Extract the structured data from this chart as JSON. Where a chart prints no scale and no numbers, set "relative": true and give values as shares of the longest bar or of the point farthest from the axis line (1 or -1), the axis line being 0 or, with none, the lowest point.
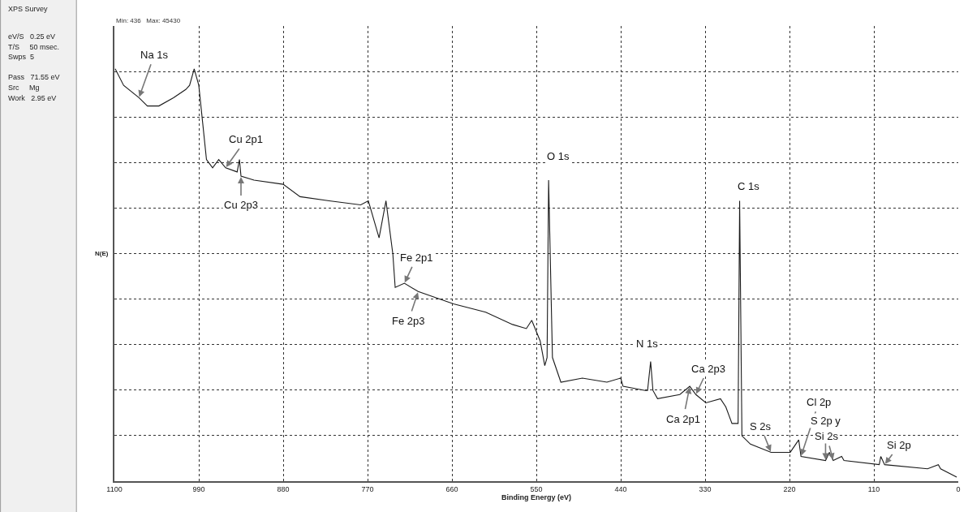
{
  "chart_data": {
    "type": "line",
    "xlabel": "Binding Energy (eV)",
    "ylabel": "N(E)",
    "relative": true,
    "grid": true,
    "xlim": [
      1100,
      0
    ],
    "xticks": [
      1100,
      990,
      880,
      770,
      660,
      550,
      440,
      330,
      220,
      110,
      0
    ],
    "x": [
      1099,
      1088,
      1068,
      1057,
      1042,
      1023,
      1007,
      1002,
      996,
      990,
      985,
      980,
      972,
      964,
      955,
      940,
      937,
      935,
      918,
      880,
      858,
      820,
      779,
      769,
      755,
      746,
      737,
      734,
      722,
      704,
      658,
      616,
      581,
      563,
      556,
      545,
      539,
      536,
      534,
      529,
      518,
      490,
      458,
      440,
      437,
      408,
      405,
      401,
      398,
      392,
      363,
      350,
      342,
      329,
      310,
      303,
      295,
      287,
      285,
      282,
      271,
      244,
      219,
      208,
      205,
      173,
      168,
      163,
      152,
      149,
      103,
      101,
      96,
      40,
      26,
      23,
      2
    ],
    "series": [
      {
        "color": "#1a1a1a",
        "values": [
          1.0,
          0.96,
          0.93,
          0.91,
          0.91,
          0.93,
          0.95,
          0.96,
          1.0,
          0.96,
          0.87,
          0.78,
          0.76,
          0.78,
          0.76,
          0.75,
          0.78,
          0.74,
          0.73,
          0.72,
          0.69,
          0.68,
          0.67,
          0.68,
          0.59,
          0.68,
          0.55,
          0.47,
          0.48,
          0.46,
          0.43,
          0.41,
          0.38,
          0.37,
          0.39,
          0.34,
          0.28,
          0.3,
          0.73,
          0.3,
          0.24,
          0.25,
          0.24,
          0.25,
          0.23,
          0.22,
          0.22,
          0.29,
          0.22,
          0.2,
          0.21,
          0.23,
          0.21,
          0.19,
          0.2,
          0.18,
          0.14,
          0.14,
          0.68,
          0.11,
          0.09,
          0.07,
          0.07,
          0.1,
          0.06,
          0.05,
          0.07,
          0.05,
          0.06,
          0.05,
          0.04,
          0.06,
          0.04,
          0.03,
          0.04,
          0.03,
          0.01
        ]
      }
    ],
    "annotations": [
      "Min: 436   Max: 45430",
      "XPS Survey",
      "eV/S   0.25 eV",
      "T/S     50 msec.",
      "Swps  5",
      "Pass   71.55 eV",
      "Src     Mg",
      "Work   2.95 eV",
      {
        "text": "Na 1s",
        "x": 1068,
        "y": 0.93
      },
      {
        "text": "Cu 2p1",
        "x": 955,
        "y": 0.76
      },
      {
        "text": "Cu 2p3",
        "x": 935,
        "y": 0.74
      },
      {
        "text": "Fe 2p1",
        "x": 722,
        "y": 0.48
      },
      {
        "text": "Fe 2p3",
        "x": 704,
        "y": 0.46
      },
      {
        "text": "O 1s",
        "x": 534,
        "y": 0.73
      },
      {
        "text": "C 1s",
        "x": 285,
        "y": 0.68
      },
      {
        "text": "N 1s",
        "x": 401,
        "y": 0.29
      },
      {
        "text": "Ca 2p3",
        "x": 342,
        "y": 0.21
      },
      {
        "text": "Ca 2p1",
        "x": 350,
        "y": 0.23
      },
      {
        "text": "S 2s",
        "x": 244,
        "y": 0.07
      },
      {
        "text": "Cl 2p",
        "x": 205,
        "y": 0.06
      },
      {
        "text": "S 2p y",
        "x": 173,
        "y": 0.05
      },
      {
        "text": "Si 2s",
        "x": 163,
        "y": 0.05
      },
      {
        "text": "Si 2p",
        "x": 96,
        "y": 0.04
      }
    ]
  }
}
